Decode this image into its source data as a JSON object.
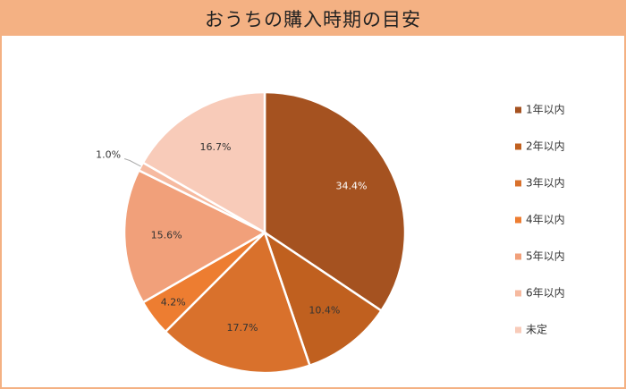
{
  "chart_data": {
    "type": "pie",
    "title": "おうちの購入時期の目安",
    "categories": [
      "1年以内",
      "2年以内",
      "3年以内",
      "4年以内",
      "5年以内",
      "6年以内",
      "未定"
    ],
    "values": [
      34.4,
      10.4,
      17.7,
      4.2,
      15.6,
      1.0,
      16.7
    ],
    "value_labels": [
      "34.4%",
      "10.4%",
      "17.7%",
      "4.2%",
      "15.6%",
      "1.0%",
      "16.7%"
    ],
    "colors": [
      "#a55220",
      "#c0601f",
      "#d9712c",
      "#ed7d31",
      "#f1a07a",
      "#f6baa0",
      "#f8cbb9"
    ],
    "legend_position": "right",
    "start_angle": "12 o'clock",
    "direction": "clockwise"
  }
}
